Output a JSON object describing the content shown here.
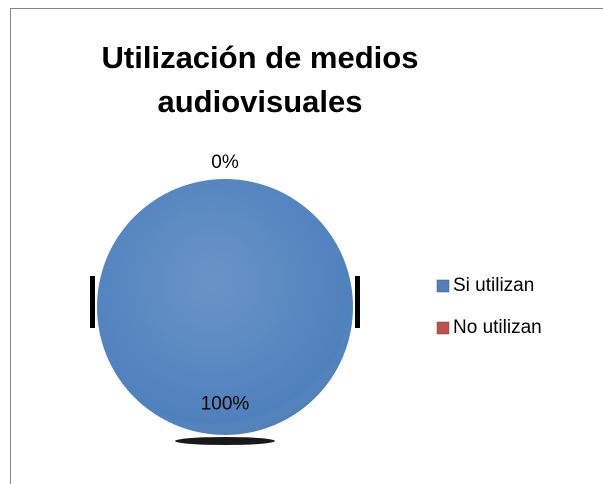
{
  "chart_data": {
    "type": "pie",
    "title": "Utilización de medios audiovisuales",
    "categories": [
      "Si utilizan",
      "No utilizan"
    ],
    "values": [
      100,
      0
    ],
    "value_labels": [
      "100%",
      "0%"
    ],
    "colors": [
      "#4f81bd",
      "#c0504d"
    ],
    "legend": "right"
  }
}
